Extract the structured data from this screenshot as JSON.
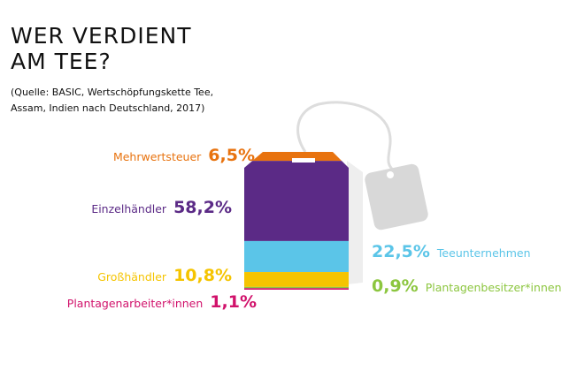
{
  "chart_data": {
    "type": "stacked-bag",
    "title": "WER VERDIENT AM TEE?",
    "subtitle": "(Quelle: BASIC, Wertschöpfungskette Tee, Assam, Indien nach Deutschland, 2017)",
    "categories": [
      "Mehrwertsteuer",
      "Einzelhändler",
      "Teeunternehmen",
      "Großhändler",
      "Plantagenbesitzer*innen",
      "Plantagenarbeiter*innen"
    ],
    "values": [
      6.5,
      58.2,
      22.5,
      10.8,
      0.9,
      1.1
    ],
    "value_labels": [
      "6,5%",
      "58,2%",
      "22,5%",
      "10,8%",
      "0,9%",
      "1,1%"
    ],
    "colors": [
      "#e8730f",
      "#5b2a86",
      "#5bc5e8",
      "#f5c400",
      "#8cc63f",
      "#d1126b"
    ]
  }
}
